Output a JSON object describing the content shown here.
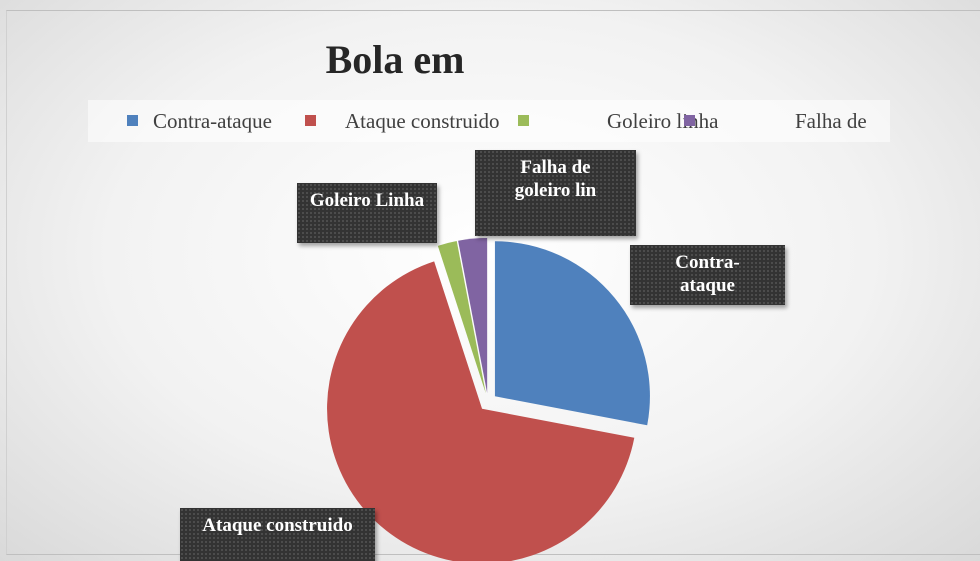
{
  "chart_data": {
    "type": "pie",
    "title": "Bola em",
    "categories": [
      "Contra-ataque",
      "Ataque construido",
      "Goleiro linha",
      "Falha de"
    ],
    "data_labels": [
      "Contra-ataque",
      "Ataque construido",
      "Goleiro Linha",
      "Falha de goleiro lin"
    ],
    "values": [
      28,
      67,
      2,
      3
    ],
    "colors": [
      "#4f81bd",
      "#c0504d",
      "#9bbb59",
      "#8064a2"
    ],
    "legend": "top"
  }
}
